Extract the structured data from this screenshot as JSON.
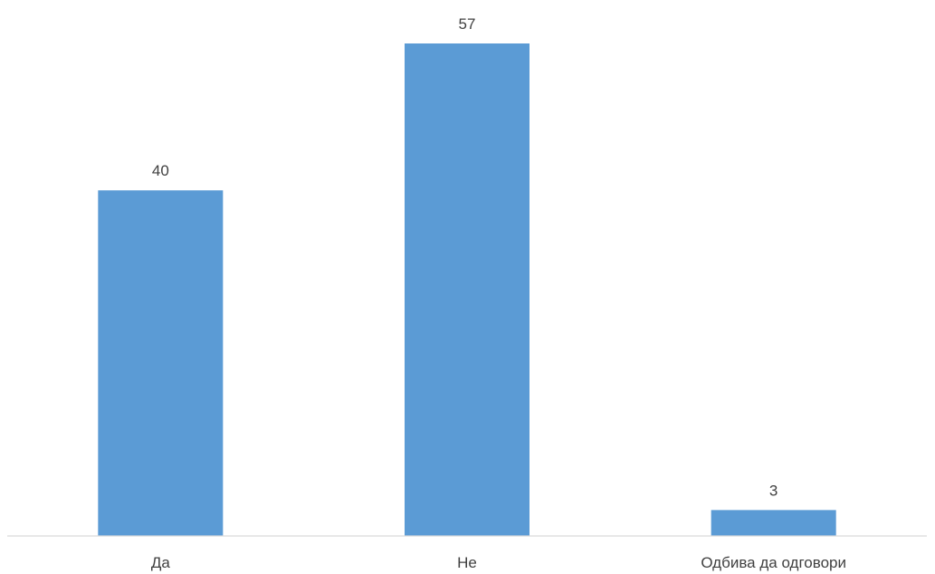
{
  "chart_data": {
    "type": "bar",
    "categories": [
      "Да",
      "Не",
      "Одбива да одговори"
    ],
    "values": [
      40,
      57,
      3
    ],
    "title": "",
    "xlabel": "",
    "ylabel": "",
    "ylim": [
      0,
      57
    ],
    "grid": false,
    "legend": "none",
    "bar_color": "#5b9bd5",
    "axis_color": "#d9d9d9",
    "label_color": "#404040",
    "data_labels": [
      "40",
      "57",
      "3"
    ]
  }
}
